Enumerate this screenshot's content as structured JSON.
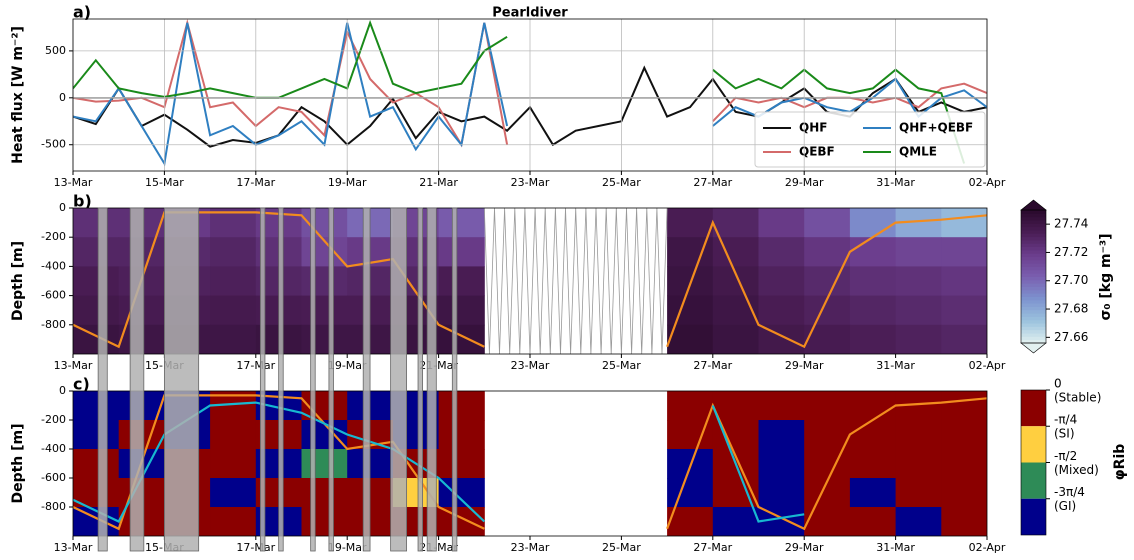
{
  "chart_data": [
    {
      "type": "line",
      "panel": "a)",
      "title": "Pearldiver",
      "ylabel": "Heat flux [W m⁻²]",
      "x": [
        0,
        0.5,
        1,
        1.5,
        2,
        2.5,
        3,
        3.5,
        4,
        4.5,
        5,
        5.5,
        6,
        6.5,
        7,
        7.5,
        8,
        8.5,
        9,
        9.5,
        10,
        10.5,
        11,
        11.5,
        12,
        12.5,
        13,
        13.5,
        14,
        14.5,
        15,
        15.5,
        16,
        16.5,
        17,
        17.5,
        18,
        18.5,
        19,
        19.5,
        20
      ],
      "xlim": [
        0,
        20
      ],
      "xticks": [
        {
          "value": 0,
          "label": "13-Mar"
        },
        {
          "value": 2,
          "label": "15-Mar"
        },
        {
          "value": 4,
          "label": "17-Mar"
        },
        {
          "value": 6,
          "label": "19-Mar"
        },
        {
          "value": 8,
          "label": "21-Mar"
        },
        {
          "value": 10,
          "label": "23-Mar"
        },
        {
          "value": 12,
          "label": "25-Mar"
        },
        {
          "value": 14,
          "label": "27-Mar"
        },
        {
          "value": 16,
          "label": "29-Mar"
        },
        {
          "value": 18,
          "label": "31-Mar"
        },
        {
          "value": 20,
          "label": "02-Apr"
        }
      ],
      "ylim": [
        -780,
        840
      ],
      "yticks": [
        -500,
        0,
        500
      ],
      "grid": true,
      "legend": "lower right",
      "series": [
        {
          "name": "QHF",
          "color": "#111111",
          "values": [
            -200,
            -280,
            100,
            -300,
            -180,
            -340,
            -520,
            -450,
            -480,
            -400,
            -100,
            -250,
            -500,
            -300,
            -10,
            -430,
            -150,
            -250,
            -200,
            -350,
            -100,
            -500,
            -350,
            -300,
            -250,
            320,
            -200,
            -100,
            200,
            -150,
            -200,
            -50,
            100,
            -150,
            -200,
            50,
            200,
            -150,
            -50,
            -150,
            -100
          ]
        },
        {
          "name": "QEBF",
          "color": "#d46a6a",
          "values": [
            0,
            -40,
            -30,
            0,
            -100,
            800,
            -100,
            -50,
            -300,
            -100,
            -150,
            -400,
            700,
            200,
            -50,
            50,
            -100,
            -500,
            800,
            -500,
            null,
            null,
            null,
            null,
            null,
            null,
            null,
            null,
            -250,
            0,
            -50,
            0,
            -100,
            0,
            0,
            -50,
            0,
            -100,
            100,
            150,
            50
          ]
        },
        {
          "name": "QHF+QEBF",
          "color": "#2f7fc1",
          "values": [
            -200,
            -250,
            100,
            -300,
            -700,
            800,
            -400,
            -300,
            -500,
            -400,
            -250,
            -500,
            800,
            -200,
            -100,
            -550,
            -200,
            -500,
            800,
            -300,
            null,
            null,
            null,
            null,
            null,
            null,
            null,
            null,
            -300,
            -100,
            -200,
            -50,
            0,
            -100,
            -150,
            0,
            200,
            -200,
            0,
            80,
            -100
          ]
        },
        {
          "name": "QMLE",
          "color": "#1a8a1a",
          "values": [
            100,
            400,
            100,
            50,
            10,
            50,
            100,
            50,
            0,
            0,
            100,
            200,
            100,
            800,
            150,
            50,
            100,
            150,
            500,
            650,
            null,
            null,
            null,
            null,
            null,
            null,
            null,
            null,
            300,
            100,
            200,
            100,
            300,
            100,
            50,
            100,
            300,
            100,
            50,
            -700,
            null
          ]
        }
      ]
    },
    {
      "type": "heatmap",
      "panel": "b)",
      "ylabel": "Depth [m]",
      "xbins": [
        0,
        1,
        2,
        3,
        4,
        5,
        6,
        7,
        8,
        9,
        10,
        11,
        12,
        13,
        14,
        15,
        16,
        17,
        18,
        19,
        20
      ],
      "ybins": [
        0,
        -200,
        -400,
        -600,
        -800,
        -1000
      ],
      "xlim": [
        0,
        20
      ],
      "xticks": [
        {
          "value": 0,
          "label": "13-Mar"
        },
        {
          "value": 2,
          "label": "15-Mar"
        },
        {
          "value": 4,
          "label": "17-Mar"
        },
        {
          "value": 6,
          "label": "19-Mar"
        },
        {
          "value": 8,
          "label": "21-Mar"
        },
        {
          "value": 10,
          "label": "23-Mar"
        },
        {
          "value": 12,
          "label": "25-Mar"
        },
        {
          "value": 14,
          "label": "27-Mar"
        },
        {
          "value": 16,
          "label": "29-Mar"
        },
        {
          "value": 18,
          "label": "31-Mar"
        },
        {
          "value": 20,
          "label": "02-Apr"
        }
      ],
      "ylim": [
        -1000,
        0
      ],
      "yticks": [
        0,
        -200,
        -400,
        -600,
        -800
      ],
      "z": [
        [
          27.725,
          27.725,
          27.72,
          27.725,
          27.72,
          27.71,
          27.7,
          27.715,
          27.705,
          null,
          null,
          null,
          null,
          27.735,
          27.73,
          27.72,
          27.71,
          27.69,
          27.68,
          27.675
        ],
        [
          27.73,
          27.73,
          27.728,
          27.73,
          27.725,
          27.715,
          27.72,
          27.725,
          27.72,
          null,
          null,
          null,
          null,
          27.74,
          27.735,
          27.728,
          27.722,
          27.718,
          27.715,
          27.715
        ],
        [
          27.735,
          27.733,
          27.732,
          27.733,
          27.73,
          27.728,
          27.73,
          27.73,
          27.735,
          null,
          null,
          null,
          null,
          27.742,
          27.738,
          27.732,
          27.728,
          27.725,
          27.724,
          27.722
        ],
        [
          27.738,
          27.736,
          27.736,
          27.737,
          27.736,
          27.735,
          27.735,
          27.738,
          27.74,
          null,
          null,
          null,
          null,
          27.744,
          27.74,
          27.735,
          27.732,
          27.73,
          27.728,
          27.726
        ],
        [
          27.742,
          27.74,
          27.74,
          27.74,
          27.742,
          27.74,
          27.74,
          27.742,
          27.744,
          null,
          null,
          null,
          null,
          27.746,
          27.742,
          27.738,
          27.736,
          27.734,
          27.732,
          27.73
        ]
      ],
      "colormap": [
        "#e3f1f0",
        "#9cc3de",
        "#7d93cf",
        "#7a5fb0",
        "#6b3d8c",
        "#4a1d55",
        "#2a0a2c"
      ],
      "lines": [
        {
          "color": "#f28c1e",
          "x": [
            0,
            1,
            2,
            3,
            4,
            5,
            6,
            7,
            8,
            9,
            10,
            11,
            12,
            13,
            14,
            15,
            16,
            17,
            18,
            19,
            20
          ],
          "values": [
            -800,
            -950,
            -30,
            -30,
            -30,
            -50,
            -400,
            -350,
            -800,
            -950,
            null,
            null,
            null,
            -950,
            -100,
            -800,
            -950,
            -300,
            -100,
            -80,
            -50
          ]
        }
      ],
      "shaded_periods": [
        [
          0.55,
          0.75
        ],
        [
          1.25,
          1.55
        ],
        [
          2.0,
          2.75
        ],
        [
          4.1,
          4.2
        ],
        [
          4.5,
          4.6
        ],
        [
          5.2,
          5.3
        ],
        [
          5.6,
          5.7
        ],
        [
          6.35,
          6.5
        ],
        [
          6.95,
          7.3
        ],
        [
          7.55,
          7.65
        ],
        [
          7.75,
          7.95
        ],
        [
          8.3,
          8.4
        ]
      ],
      "colorbar": {
        "label": "σ₀ [kg m⁻³]",
        "ylim": [
          27.656,
          27.75
        ],
        "yticks": [
          27.66,
          27.68,
          {
            "value": 27.7,
            "label": "27.70"
          },
          27.72,
          27.74
        ]
      }
    },
    {
      "type": "category_map",
      "panel": "c)",
      "ylabel": "Depth [m]",
      "xbins": [
        0,
        1,
        2,
        3,
        4,
        5,
        6,
        7,
        8,
        9,
        10,
        11,
        12,
        13,
        14,
        15,
        16,
        17,
        18,
        19,
        20
      ],
      "ybins": [
        0,
        -200,
        -400,
        -600,
        -800,
        -1000
      ],
      "xlim": [
        0,
        20
      ],
      "xticks": [
        {
          "value": 0,
          "label": "13-Mar"
        },
        {
          "value": 2,
          "label": "15-Mar"
        },
        {
          "value": 4,
          "label": "17-Mar"
        },
        {
          "value": 6,
          "label": "19-Mar"
        },
        {
          "value": 8,
          "label": "21-Mar"
        },
        {
          "value": 10,
          "label": "23-Mar"
        },
        {
          "value": 12,
          "label": "25-Mar"
        },
        {
          "value": 14,
          "label": "27-Mar"
        },
        {
          "value": 16,
          "label": "29-Mar"
        },
        {
          "value": 18,
          "label": "31-Mar"
        },
        {
          "value": 20,
          "label": "02-Apr"
        }
      ],
      "ylim": [
        -1000,
        0
      ],
      "yticks": [
        0,
        -200,
        -400,
        -600,
        -800
      ],
      "z": [
        [
          -2.75,
          -2.75,
          -2.75,
          -0.39,
          -2.75,
          -0.39,
          -2.75,
          -2.75,
          -0.39,
          null,
          null,
          null,
          null,
          -0.39,
          -0.39,
          -0.39,
          -0.39,
          -0.39,
          -0.39,
          -0.39
        ],
        [
          -2.75,
          -0.39,
          -2.75,
          -0.39,
          -0.39,
          -2.75,
          -0.39,
          -2.75,
          -0.39,
          null,
          null,
          null,
          null,
          -0.39,
          -0.39,
          -2.75,
          -0.39,
          -0.39,
          -0.39,
          -0.39
        ],
        [
          -0.39,
          -2.75,
          -0.39,
          -0.39,
          -2.75,
          -1.96,
          -2.75,
          -0.39,
          -0.39,
          null,
          null,
          null,
          null,
          -2.75,
          -0.39,
          -2.75,
          -0.39,
          -0.39,
          -0.39,
          -0.39
        ],
        [
          -0.39,
          -0.39,
          -0.39,
          -2.75,
          -0.39,
          -0.39,
          -0.39,
          -1.18,
          -2.75,
          null,
          null,
          null,
          null,
          -2.75,
          -0.39,
          -2.75,
          -0.39,
          -2.75,
          -0.39,
          -0.39
        ],
        [
          -2.75,
          -0.39,
          -0.39,
          -0.39,
          -2.75,
          -0.39,
          -0.39,
          -0.39,
          -0.39,
          null,
          null,
          null,
          null,
          -0.39,
          -2.75,
          -2.75,
          -0.39,
          -0.39,
          -2.75,
          -0.39
        ]
      ],
      "lines": [
        {
          "color": "#f28c1e",
          "x": [
            0,
            1,
            2,
            3,
            4,
            5,
            6,
            7,
            8,
            9,
            10,
            11,
            12,
            13,
            14,
            15,
            16,
            17,
            18,
            19,
            20
          ],
          "values": [
            -800,
            -950,
            -30,
            -30,
            -30,
            -50,
            -400,
            -350,
            -800,
            -950,
            null,
            null,
            null,
            -950,
            -100,
            -800,
            -950,
            -300,
            -100,
            -80,
            -50
          ]
        },
        {
          "color": "#17b8d0",
          "x": [
            0,
            1,
            2,
            3,
            4,
            5,
            6,
            7,
            8,
            9,
            10,
            11,
            12,
            13,
            14,
            15,
            16,
            17,
            18,
            19,
            20
          ],
          "values": [
            -750,
            -900,
            -300,
            -100,
            -80,
            -150,
            -300,
            -400,
            -600,
            -900,
            null,
            null,
            null,
            null,
            -100,
            -900,
            -850,
            null,
            null,
            null,
            null
          ]
        }
      ],
      "colorbar": {
        "label": "φRib",
        "ylim": [
          -3.1416,
          0
        ],
        "yticks": [
          {
            "value": 0,
            "label": "0"
          },
          {
            "value": -0.785,
            "label": "-π/4"
          },
          {
            "value": -1.571,
            "label": "-π/2"
          },
          {
            "value": -2.356,
            "label": "-3π/4"
          }
        ],
        "notes": [
          "(Stable)",
          "(SI)",
          "(Mixed)",
          "(GI)"
        ],
        "colors": [
          "#8b0000",
          "#ffcf40",
          "#2e8b57",
          "#00008b"
        ]
      }
    }
  ]
}
